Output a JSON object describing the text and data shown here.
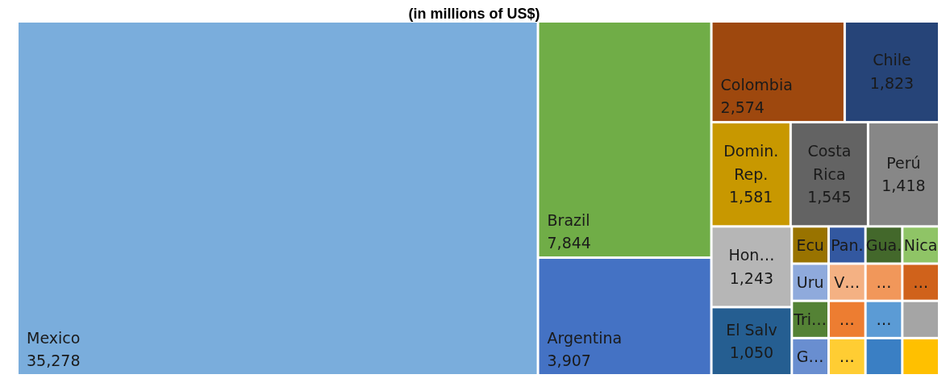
{
  "chart_data": {
    "type": "other",
    "title": "(in millions of US$)",
    "categories": [
      "Mexico",
      "Brazil",
      "Argentina",
      "Colombia",
      "Chile",
      "Domin. Rep.",
      "Costa Rica",
      "Perú",
      "Hon…",
      "El Salv",
      "Ecu",
      "Pan.",
      "Gua.",
      "Nica",
      "Uru",
      "Tri…",
      "G…",
      "V…",
      "…",
      "…",
      "…",
      "…",
      "…",
      null,
      null,
      null
    ],
    "values": [
      35278,
      7844,
      3907,
      2574,
      1823,
      1581,
      1545,
      1418,
      1243,
      1050,
      null,
      null,
      null,
      null,
      null,
      null,
      null,
      null,
      null,
      null,
      null,
      null,
      null,
      null,
      null,
      null
    ],
    "value_labels": [
      "35,278",
      "7,844",
      "3,907",
      "2,574",
      "1,823",
      "1,581",
      "1,545",
      "1,418",
      "1,243",
      "1,050",
      null,
      null,
      null,
      null,
      null,
      null,
      null,
      null,
      null,
      null,
      null,
      null,
      null,
      null,
      null,
      null
    ],
    "colors": [
      "#7aaddc",
      "#70ad47",
      "#4472c4",
      "#9e480e",
      "#264478",
      "#c89800",
      "#636363",
      "#878787",
      "#b6b6b6",
      "#255e91",
      "#997300",
      "#3358a0",
      "#43682b",
      "#8fc466",
      "#8faadc",
      "#548235",
      "#698ed0",
      "#f4b183",
      "#f1975a",
      "#d0621b",
      "#ed7d31",
      "#ffcd33",
      "#5b9bd5",
      "#a5a5a5",
      "#3a7fc4",
      "#ffc000"
    ]
  }
}
